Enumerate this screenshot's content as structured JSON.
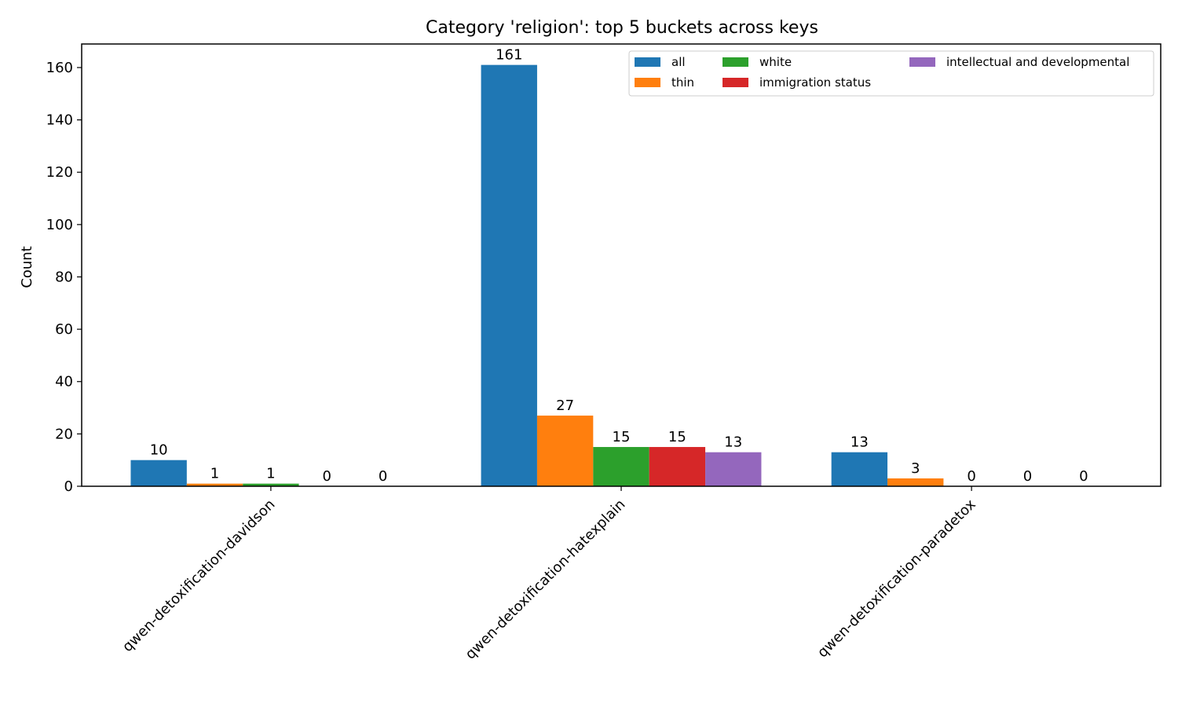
{
  "chart_data": {
    "type": "bar",
    "title": "Category 'religion': top 5 buckets across keys",
    "xlabel": "",
    "ylabel": "Count",
    "ylim": [
      0,
      169
    ],
    "yticks": [
      0,
      20,
      40,
      60,
      80,
      100,
      120,
      140,
      160
    ],
    "categories": [
      "qwen-detoxification-davidson",
      "qwen-detoxification-hatexplain",
      "qwen-detoxification-paradetox"
    ],
    "series": [
      {
        "name": "all",
        "color": "#1f77b4",
        "values": [
          10,
          161,
          13
        ]
      },
      {
        "name": "thin",
        "color": "#ff7f0e",
        "values": [
          1,
          27,
          3
        ]
      },
      {
        "name": "white",
        "color": "#2ca02c",
        "values": [
          1,
          15,
          0
        ]
      },
      {
        "name": "immigration status",
        "color": "#d62728",
        "values": [
          0,
          15,
          0
        ]
      },
      {
        "name": "intellectual and developmental",
        "color": "#9467bd",
        "values": [
          0,
          13,
          0
        ]
      }
    ],
    "legend_position": "top-right",
    "legend_columns": 3,
    "grid": false
  }
}
